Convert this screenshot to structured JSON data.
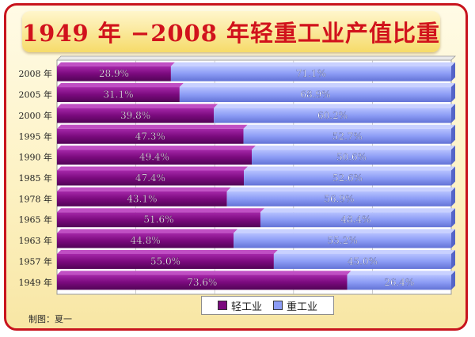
{
  "title": "1949 年 −2008 年轻重工业产值比重",
  "credit": "制图：夏一",
  "colors": {
    "light": "#7b0a7e",
    "heavy": "#8c9cf5",
    "background": "#fdf2c4",
    "border": "#c8141e",
    "title": "#d1121c"
  },
  "chart_data": {
    "type": "bar",
    "orientation": "horizontal",
    "stacked": true,
    "percent": true,
    "categories": [
      "2008 年",
      "2005 年",
      "2000 年",
      "1995 年",
      "1990 年",
      "1985 年",
      "1978 年",
      "1965 年",
      "1963 年",
      "1957 年",
      "1949 年"
    ],
    "series": [
      {
        "name": "轻工业",
        "values": [
          28.9,
          31.1,
          39.8,
          47.3,
          49.4,
          47.4,
          43.1,
          51.6,
          44.8,
          55.0,
          73.6
        ],
        "labels": [
          "28.9%",
          "31.1%",
          "39.8%",
          "47.3%",
          "49.4%",
          "47.4%",
          "43.1%",
          "51.6%",
          "44.8%",
          "55.0%",
          "73.6%"
        ]
      },
      {
        "name": "重工业",
        "values": [
          71.1,
          68.9,
          60.2,
          52.7,
          50.6,
          52.6,
          56.9,
          48.4,
          55.2,
          45.0,
          26.4
        ],
        "labels": [
          "71.1%",
          "68.9%",
          "60.2%",
          "52.7%",
          "50.6%",
          "52.6%",
          "56.9%",
          "48.4%",
          "55.2%",
          "45.0%",
          "26.4%"
        ]
      }
    ],
    "xlim": [
      0,
      100
    ],
    "grid": true,
    "legend_position": "bottom-center"
  }
}
